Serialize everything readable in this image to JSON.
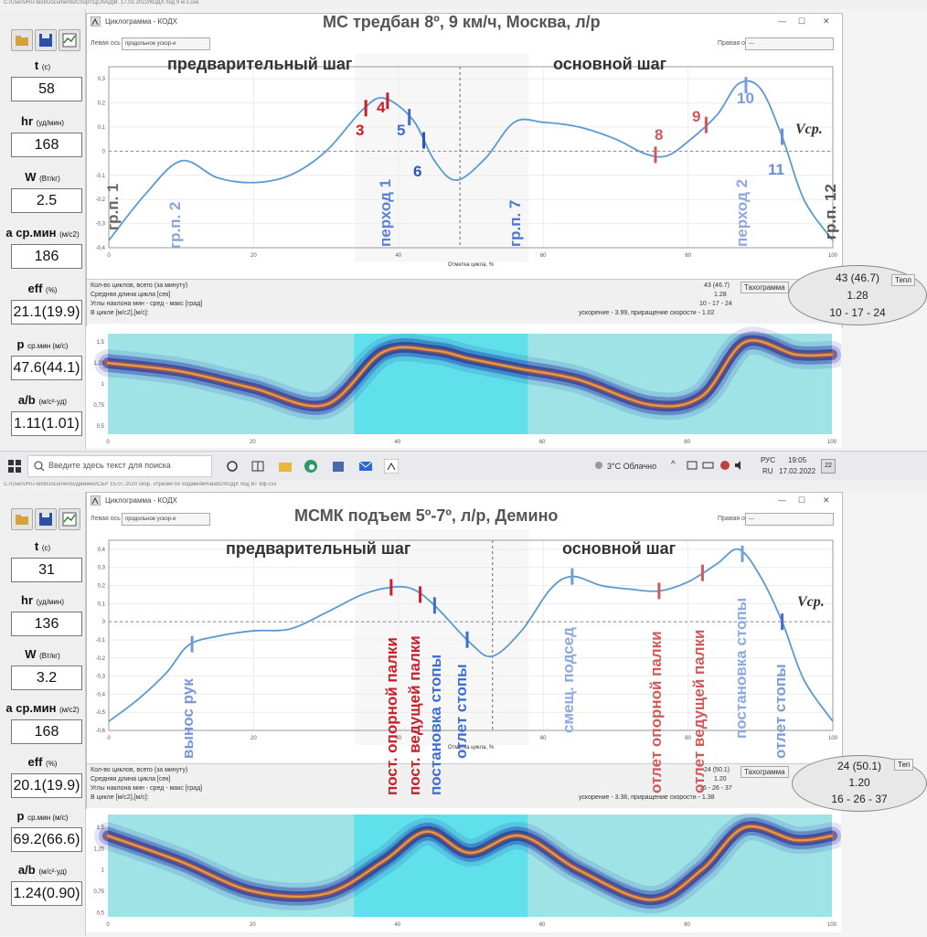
{
  "taskbar": {
    "search_placeholder": "Введите здесь текст для поиска",
    "weather": "3°C Облачно",
    "lang_top": "РУС",
    "lang_bottom": "RU",
    "time": "19:05",
    "date": "17.02.2022",
    "notif_count": "22"
  },
  "panels": [
    {
      "path": "C:/Users/RU-test/Documents/Спорт/ЦСКА/ДМ. 17.02.2022/КОДХ под 9 м с.сек",
      "window_title": "Циклограмма - КОДХ",
      "left_axis_label": "Левая ось",
      "left_axis_value": "продольное ускор-е",
      "right_axis_label": "Правая ось",
      "right_axis_value": "---",
      "big_title": "МС  тредбан 8º, 9 км/ч, Москва, л/р",
      "phase_left": "предварительный шаг",
      "phase_right": "основной шаг",
      "vcp": "Vср.",
      "sidebar": [
        {
          "label": "t",
          "unit": "(с)",
          "value": "58"
        },
        {
          "label": "hr",
          "unit": "(уд/мин)",
          "value": "168"
        },
        {
          "label": "W",
          "unit": "(Вт/кг)",
          "value": "2.5"
        },
        {
          "label": "a ср.мин",
          "unit": "(м/с2)",
          "value": "186"
        },
        {
          "label": "eff",
          "unit": "(%)",
          "value": "21.1(19.9)"
        },
        {
          "label": "p",
          "unit": "ср.мин (м/с)",
          "value": "47.6(44.1)"
        },
        {
          "label": "a/b",
          "unit": "(м/с²·уд)",
          "value": "1.11(1.01)"
        }
      ],
      "info": {
        "row1": "Кол-во циклов, всего (за минуту)",
        "row2": "Средняя длина цикла [сек]",
        "row3": "Углы наклона мин - сред - макс [град]",
        "row4": "В цикле [м/с2],[м/с]:",
        "val1": "43 (46.7)",
        "val2": "1.28",
        "val3": "10 - 17 - 24",
        "val4": "ускорение - 3.99, приращение скорости - 1.02",
        "tab_label": "Тахограмма",
        "tab2": "Тепл"
      },
      "ellipse": [
        "43 (46.7)",
        "1.28",
        "10 - 17 - 24"
      ],
      "x_axis_label": "Отметка цикла, %",
      "markers": [
        {
          "text": "3",
          "color": "#c8202a"
        },
        {
          "text": "4",
          "color": "#c8202a"
        },
        {
          "text": "5",
          "color": "#3c6ed0"
        },
        {
          "text": "6",
          "color": "#2a52c0"
        },
        {
          "text": "8",
          "color": "#d05a5a"
        },
        {
          "text": "9",
          "color": "#d05a5a"
        },
        {
          "text": "10",
          "color": "#7a9cd8"
        },
        {
          "text": "11",
          "color": "#6a8fd8"
        }
      ],
      "vlabels": [
        {
          "text": "гр.п. 1",
          "color": "#666"
        },
        {
          "text": "гр.п. 2",
          "color": "#88a4dc"
        },
        {
          "text": "перход  1",
          "color": "#5a82d8"
        },
        {
          "text": "гр.п. 7",
          "color": "#4a78d8"
        },
        {
          "text": "перход  2",
          "color": "#8ea8e0"
        },
        {
          "text": "гр.п. 12",
          "color": "#555"
        }
      ]
    },
    {
      "path": "C:/Users/RU-test/Documents/Демино/СБР 15.07.2020 скор. отрезки по ходам/deRata92/КОДХ под ВТ 8ф.csv",
      "window_title": "Циклограмма - КОДХ",
      "left_axis_label": "Левая ось",
      "left_axis_value": "продольное ускор-е",
      "right_axis_label": "Правая ось",
      "right_axis_value": "---",
      "big_title": "МСМК   подъем 5º-7º, л/р, Демино",
      "phase_left": "предварительный шаг",
      "phase_right": "основной шаг",
      "vcp": "Vср.",
      "sidebar": [
        {
          "label": "t",
          "unit": "(с)",
          "value": "31"
        },
        {
          "label": "hr",
          "unit": "(уд/мин)",
          "value": "136"
        },
        {
          "label": "W",
          "unit": "(Вт/кг)",
          "value": "3.2"
        },
        {
          "label": "a ср.мин",
          "unit": "(м/с2)",
          "value": "168"
        },
        {
          "label": "eff",
          "unit": "(%)",
          "value": "20.1(19.9)"
        },
        {
          "label": "p",
          "unit": "ср.мин (м/с)",
          "value": "69.2(66.6)"
        },
        {
          "label": "a/b",
          "unit": "(м/с²·уд)",
          "value": "1.24(0.90)"
        }
      ],
      "info": {
        "row1": "Кол-во циклов, всего (за минуту)",
        "row2": "Средняя длина цикла [сек]",
        "row3": "Углы наклона мин - сред - макс [град]",
        "row4": "В цикле [м/с2],[м/с]:",
        "val1": "24 (50.1)",
        "val2": "1.20",
        "val3": "16 - 26 - 37",
        "val4": "ускорение - 3.36, приращение скорости - 1.38",
        "tab_label": "Тахограмма",
        "tab2": "Теп"
      },
      "ellipse": [
        "24 (50.1)",
        "1.20",
        "16 - 26 - 37"
      ],
      "x_axis_label": "Отметка цикла, %",
      "vlabels": [
        {
          "text": "вынос рук",
          "color": "#7a96d8"
        },
        {
          "text": "пост. опорной  палки",
          "color": "#c8202a"
        },
        {
          "text": "пост. ведущей палки",
          "color": "#c8202a"
        },
        {
          "text": "постановка  стопы",
          "color": "#3c6ed0"
        },
        {
          "text": "отлет  стопы",
          "color": "#3c6ed0"
        },
        {
          "text": "смещ. подсед",
          "color": "#8ea8e0"
        },
        {
          "text": "отлет  опорной палки",
          "color": "#d05a5a"
        },
        {
          "text": "отлет  ведущей палки",
          "color": "#d05a5a"
        },
        {
          "text": "постановка  стопы",
          "color": "#8ea8e0"
        },
        {
          "text": "отлет  стопы",
          "color": "#7a9cd8"
        }
      ]
    }
  ],
  "chart_data": [
    {
      "type": "line",
      "title": "МС  тредбан 8º, 9 км/ч, Москва, л/р",
      "xlabel": "Отметка цикла, %",
      "xlim": [
        0,
        100
      ],
      "ylim": [
        -0.4,
        0.35
      ],
      "x_ticks": [
        0,
        20,
        40,
        60,
        80,
        100
      ],
      "y_ticks": [
        "-0,4",
        "-0,3",
        "-0,2",
        "-0,1",
        "0",
        "0,1",
        "0,2",
        "0,3"
      ],
      "x": [
        0,
        5,
        10,
        15,
        20,
        25,
        30,
        35,
        38,
        42,
        45,
        48,
        52,
        56,
        60,
        65,
        70,
        74,
        77,
        80,
        84,
        87,
        90,
        93,
        96,
        100
      ],
      "y": [
        -0.37,
        -0.18,
        -0.04,
        -0.11,
        -0.13,
        -0.1,
        0.0,
        0.17,
        0.22,
        0.13,
        -0.04,
        -0.12,
        -0.03,
        0.12,
        0.12,
        0.1,
        0.05,
        -0.01,
        -0.02,
        0.04,
        0.15,
        0.28,
        0.26,
        0.06,
        -0.2,
        -0.37
      ],
      "marker_x": [
        35.5,
        38.5,
        41.5,
        43.5,
        75.5,
        82.5,
        88,
        93
      ],
      "heat_ylim": [
        0.4,
        1.6
      ],
      "heat_y_ticks": [
        "0,5",
        "0,75",
        "1",
        "1,25",
        "1,5"
      ],
      "heat_center_x": [
        0,
        10,
        20,
        30,
        38,
        45,
        50,
        57,
        65,
        75,
        82,
        88,
        95,
        100
      ],
      "heat_center_y": [
        1.25,
        1.15,
        0.95,
        0.75,
        1.38,
        1.4,
        1.3,
        1.18,
        1.05,
        0.75,
        0.85,
        1.5,
        1.35,
        1.35
      ]
    },
    {
      "type": "line",
      "title": "МСМК   подъем 5º-7º, л/р, Демино",
      "xlabel": "Отметка цикла, %",
      "xlim": [
        0,
        100
      ],
      "ylim": [
        -0.6,
        0.45
      ],
      "x_ticks": [
        0,
        20,
        40,
        60,
        80,
        100
      ],
      "y_ticks": [
        "-0,6",
        "-0,5",
        "-0,4",
        "-0,3",
        "-0,2",
        "-0,1",
        "0",
        "0,1",
        "0,2",
        "0,3",
        "0,4"
      ],
      "x": [
        0,
        4,
        8,
        11,
        15,
        20,
        25,
        30,
        35,
        39,
        42,
        45,
        50,
        53,
        57,
        61,
        64,
        68,
        72,
        76,
        80,
        84,
        87,
        90,
        93,
        96,
        100
      ],
      "y": [
        -0.55,
        -0.43,
        -0.28,
        -0.13,
        -0.08,
        -0.05,
        -0.04,
        0.05,
        0.15,
        0.19,
        0.18,
        0.09,
        -0.12,
        -0.19,
        -0.05,
        0.18,
        0.25,
        0.2,
        0.18,
        0.17,
        0.22,
        0.32,
        0.4,
        0.25,
        0.0,
        -0.32,
        -0.55
      ],
      "marker_x": [
        11.5,
        39,
        43,
        45,
        49.5,
        64,
        76,
        82,
        87.5,
        93
      ],
      "heat_ylim": [
        0.45,
        1.65
      ],
      "heat_y_ticks": [
        "0,5",
        "0,75",
        "1",
        "1,25",
        "1,5"
      ],
      "heat_center_x": [
        0,
        10,
        20,
        30,
        38,
        44,
        50,
        57,
        65,
        75,
        82,
        88,
        95,
        100
      ],
      "heat_center_y": [
        1.4,
        1.1,
        0.75,
        0.72,
        1.1,
        1.45,
        1.2,
        1.4,
        1.0,
        0.65,
        1.0,
        1.5,
        1.35,
        1.4
      ]
    }
  ]
}
